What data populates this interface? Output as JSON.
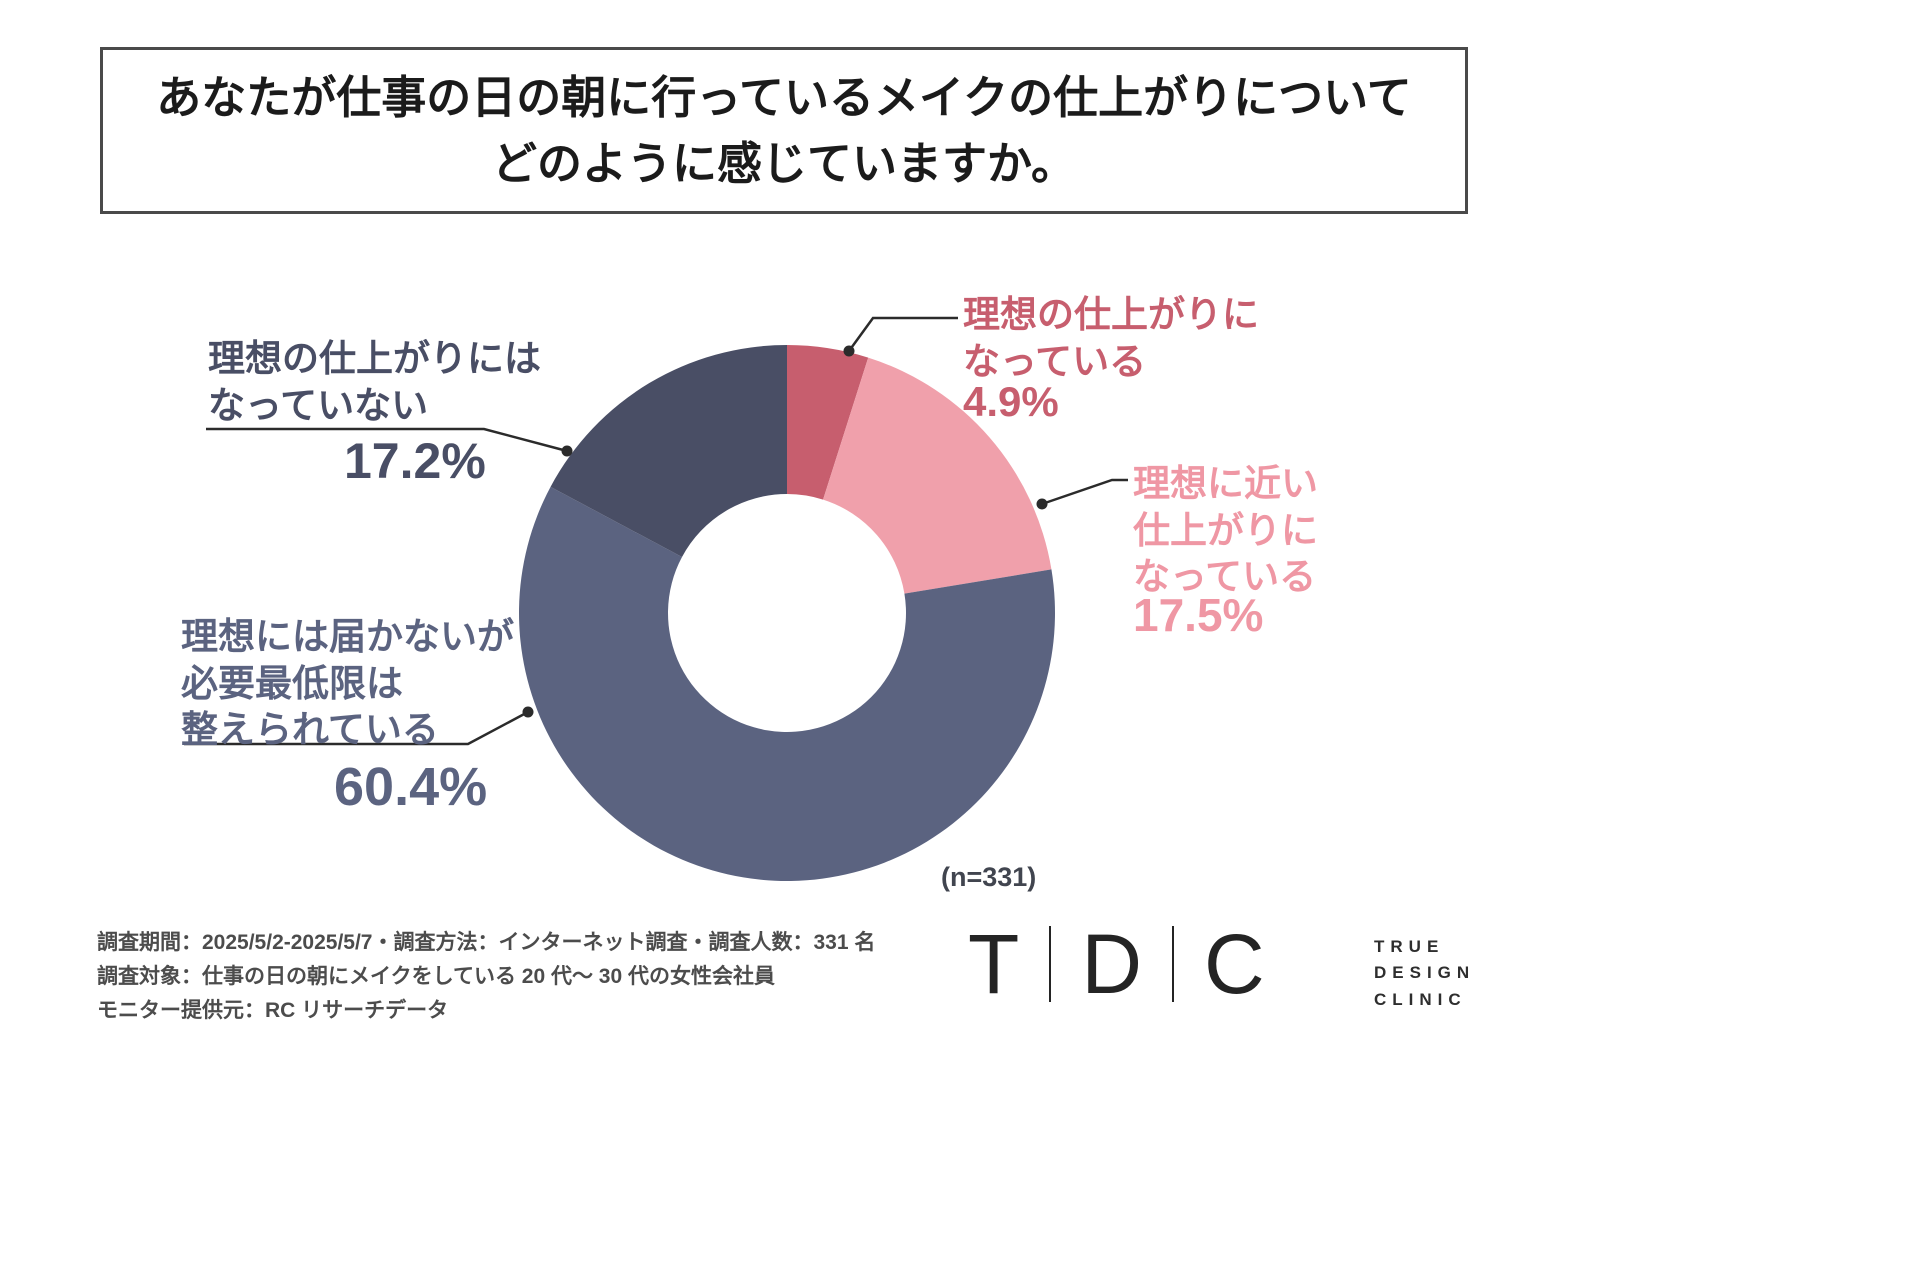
{
  "title": {
    "line1": "あなたが仕事の日の朝に行っているメイクの仕上がりについて",
    "line2": "どのように感じていますか。"
  },
  "chart_data": {
    "type": "pie",
    "donut": true,
    "title": "あなたが仕事の日の朝に行っているメイクの仕上がりについてどのように感じていますか。",
    "n": 331,
    "n_label": "(n=331)",
    "start_angle_deg": -90,
    "direction": "clockwise",
    "segments": [
      {
        "label": "理想の仕上がりになっている",
        "value": 4.9,
        "color": "#c75e6e"
      },
      {
        "label": "理想に近い仕上がりになっている",
        "value": 17.5,
        "color": "#f0a0ab"
      },
      {
        "label": "理想には届かないが必要最低限は整えられている",
        "value": 60.4,
        "color": "#5b6380"
      },
      {
        "label": "理想の仕上がりにはなっていない",
        "value": 17.2,
        "color": "#494e65"
      }
    ]
  },
  "labels": {
    "ideal": {
      "text": "理想の仕上がりに\nなっている",
      "pct": "4.9%"
    },
    "near_ideal": {
      "text": "理想に近い\n仕上がりに\nなっている",
      "pct": "17.5%"
    },
    "minimum": {
      "text": "理想には届かないが\n必要最低限は\n整えられている",
      "pct": "60.4%"
    },
    "not_ideal": {
      "text": "理想の仕上がりには\nなっていない",
      "pct": "17.2%"
    }
  },
  "footer": {
    "line1": "調査期間：2025/5/2-2025/5/7・調査方法：インターネット調査・調査人数：331 名",
    "line2": "調査対象：仕事の日の朝にメイクをしている 20 代〜 30 代の女性会社員",
    "line3": "モニター提供元：RC リサーチデータ"
  },
  "logo": {
    "letters": [
      "T",
      "D",
      "C"
    ],
    "name_lines": [
      "TRUE",
      "DESIGN",
      "CLINIC"
    ]
  }
}
